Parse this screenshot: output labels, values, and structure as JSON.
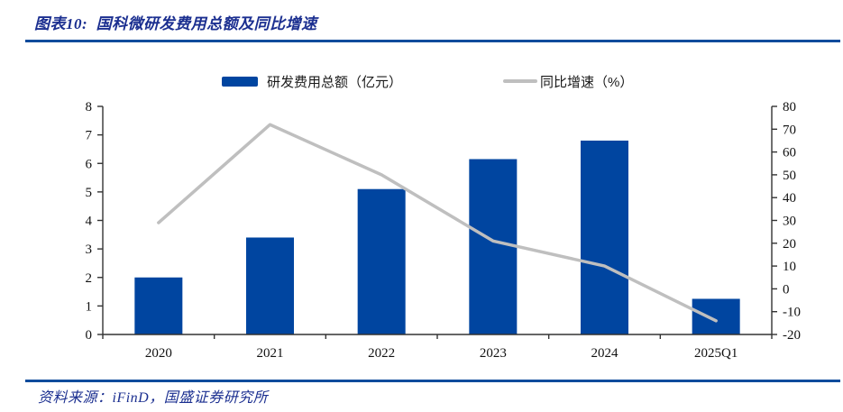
{
  "header": {
    "title": "图表10:  国科微研发费用总额及同比增速"
  },
  "footer": {
    "source": "资料来源：iFinD，国盛证券研究所"
  },
  "colors": {
    "bar_series": "#0045A0",
    "line_series": "#BFBFBF",
    "heading_text": "#1B2F90",
    "divider": "#0F4C9C",
    "axis": "#333333",
    "tick_text": "#111111"
  },
  "chart_data": {
    "type": "combo",
    "title": "国科微研发费用总额及同比增速",
    "categories": [
      "2020",
      "2021",
      "2022",
      "2023",
      "2024",
      "2025Q1"
    ],
    "series": [
      {
        "name": "研发费用总额（亿元）",
        "type": "bar",
        "axis": "left",
        "values": [
          2.0,
          3.4,
          5.1,
          6.15,
          6.8,
          1.25
        ]
      },
      {
        "name": "同比增速（%）",
        "type": "line",
        "axis": "right",
        "values": [
          29,
          72,
          50,
          21,
          10,
          -14
        ]
      }
    ],
    "left_axis": {
      "min": 0,
      "max": 8,
      "step": 1,
      "ticks": [
        "0",
        "1",
        "2",
        "3",
        "4",
        "5",
        "6",
        "7",
        "8"
      ]
    },
    "right_axis": {
      "min": -20,
      "max": 80,
      "step": 10,
      "ticks": [
        "-20",
        "-10",
        "0",
        "10",
        "20",
        "30",
        "40",
        "50",
        "60",
        "70",
        "80"
      ]
    },
    "grid": false,
    "legend_position": "top-center"
  }
}
